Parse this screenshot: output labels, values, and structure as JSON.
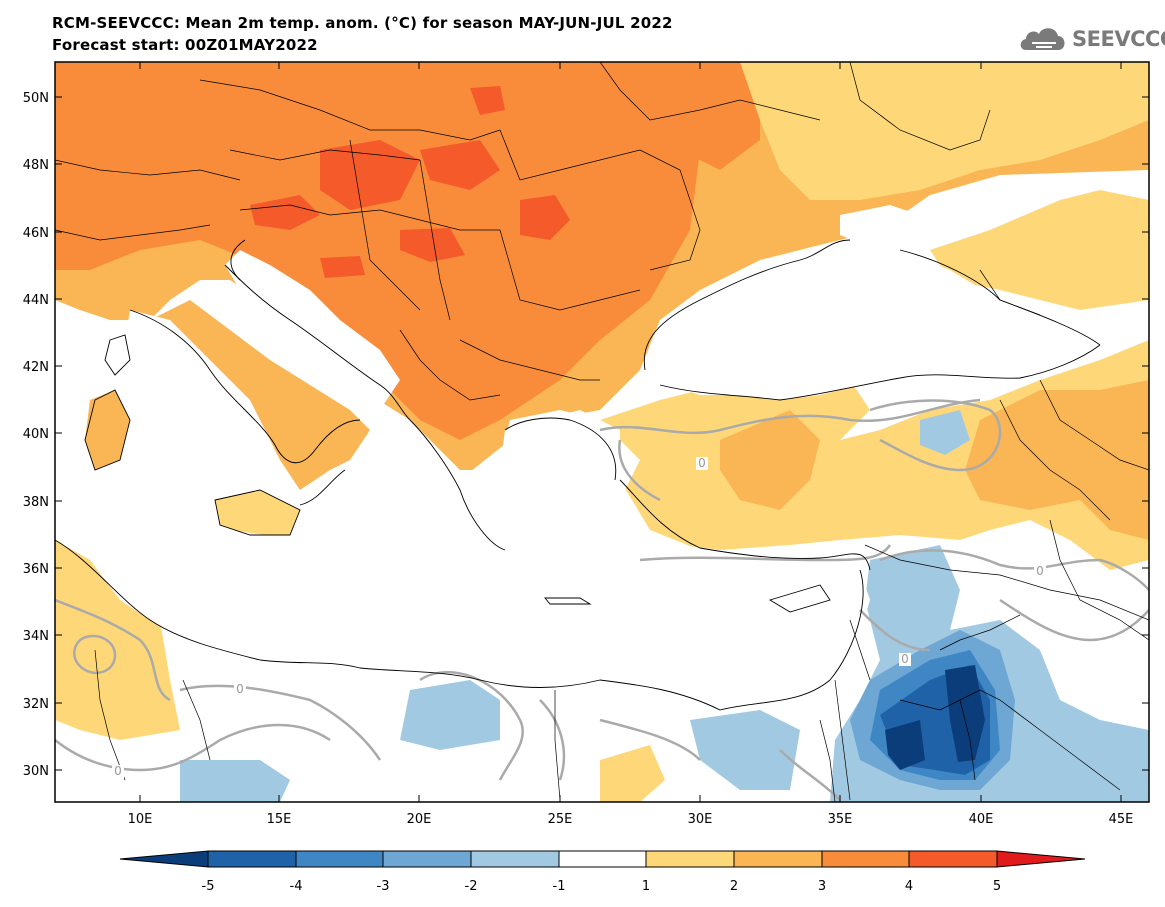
{
  "header": {
    "title_line1": "RCM-SEEVCCC: Mean 2m temp. anom. (°C) for season MAY-JUN-JUL 2022",
    "title_line2": "Forecast start: 00Z01MAY2022"
  },
  "logo": {
    "text": "SEEVCCC",
    "icon": "cloud-icon"
  },
  "map": {
    "lon_labels": [
      "10E",
      "15E",
      "20E",
      "25E",
      "30E",
      "35E",
      "40E",
      "45E"
    ],
    "lat_labels": [
      "50N",
      "48N",
      "46N",
      "44N",
      "42N",
      "40N",
      "38N",
      "36N",
      "34N",
      "32N",
      "30N"
    ],
    "contour_label": "0"
  },
  "colorbar": {
    "labels": [
      "-5",
      "-4",
      "-3",
      "-2",
      "-1",
      "1",
      "2",
      "3",
      "4",
      "5"
    ],
    "colors": [
      "#0b3d7a",
      "#1f62a8",
      "#3f87c4",
      "#6ea6d4",
      "#a2c9e2",
      "#ffffff",
      "#fed878",
      "#fab554",
      "#f98c3a",
      "#f45a2a",
      "#e11b1b"
    ]
  },
  "palette": {
    "blue4": "#0b3d7a",
    "blue3": "#1f62a8",
    "blue2": "#3f87c4",
    "blue1": "#6ea6d4",
    "blue0": "#a2c9e2",
    "white": "#ffffff",
    "orange0": "#fed878",
    "orange1": "#fab554",
    "orange2": "#f98c3a",
    "red": "#f45a2a"
  }
}
